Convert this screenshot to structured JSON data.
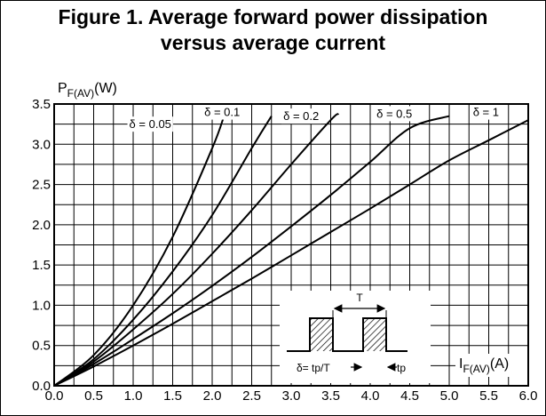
{
  "figure": {
    "title_line1": "Figure 1. Average forward power dissipation",
    "title_line2": "versus average current"
  },
  "chart_data": {
    "type": "line",
    "title": "Figure 1. Average forward power dissipation versus average current",
    "ylabel_main": "P",
    "ylabel_sub": "F(AV)",
    "ylabel_unit": "(W)",
    "xlabel_main": "I",
    "xlabel_sub": "F(AV)",
    "xlabel_unit": "(A)",
    "xlim": [
      0,
      6
    ],
    "ylim": [
      0,
      3.5
    ],
    "x_ticks": [
      "0.0",
      "0.5",
      "1.0",
      "1.5",
      "2.0",
      "2.5",
      "3.0",
      "3.5",
      "4.0",
      "4.5",
      "5.0",
      "5.5",
      "6.0"
    ],
    "y_ticks": [
      "0.0",
      "0.5",
      "1.0",
      "1.5",
      "2.0",
      "2.5",
      "3.0",
      "3.5"
    ],
    "grid": true,
    "series": [
      {
        "name": "δ = 0.05",
        "x": [
          0,
          0.5,
          1.0,
          1.5,
          2.0,
          2.15
        ],
        "y": [
          0,
          0.38,
          1.0,
          1.85,
          2.95,
          3.35
        ]
      },
      {
        "name": "δ = 0.1",
        "x": [
          0,
          0.5,
          1.0,
          1.5,
          2.0,
          2.5,
          2.75
        ],
        "y": [
          0,
          0.33,
          0.82,
          1.42,
          2.12,
          2.95,
          3.35
        ]
      },
      {
        "name": "δ = 0.2",
        "x": [
          0,
          0.5,
          1.0,
          1.5,
          2.0,
          2.5,
          3.0,
          3.5,
          3.6
        ],
        "y": [
          0,
          0.3,
          0.7,
          1.14,
          1.64,
          2.18,
          2.75,
          3.3,
          3.38
        ]
      },
      {
        "name": "δ = 0.5",
        "x": [
          0,
          0.5,
          1.0,
          1.5,
          2.0,
          2.5,
          3.0,
          3.5,
          4.0,
          4.5,
          5.0
        ],
        "y": [
          0,
          0.27,
          0.58,
          0.9,
          1.24,
          1.6,
          1.98,
          2.37,
          2.78,
          3.2,
          3.35
        ]
      },
      {
        "name": "δ = 1",
        "x": [
          0,
          0.5,
          1.0,
          1.5,
          2.0,
          2.5,
          3.0,
          3.5,
          4.0,
          4.5,
          5.0,
          5.5,
          6.0
        ],
        "y": [
          0,
          0.24,
          0.5,
          0.77,
          1.05,
          1.33,
          1.62,
          1.91,
          2.2,
          2.5,
          2.8,
          3.05,
          3.3
        ]
      }
    ],
    "curve_labels": [
      {
        "text": "δ = 0.05",
        "x": 0.95,
        "y": 3.2
      },
      {
        "text": "δ = 0.1",
        "x": 1.9,
        "y": 3.35
      },
      {
        "text": "δ = 0.2",
        "x": 2.9,
        "y": 3.3
      },
      {
        "text": "δ = 0.5",
        "x": 4.08,
        "y": 3.33
      },
      {
        "text": "δ = 1",
        "x": 5.3,
        "y": 3.35
      }
    ],
    "inset": {
      "period_label": "T",
      "duty_label": "δ= tp/T",
      "pulse_label": "tp"
    }
  }
}
